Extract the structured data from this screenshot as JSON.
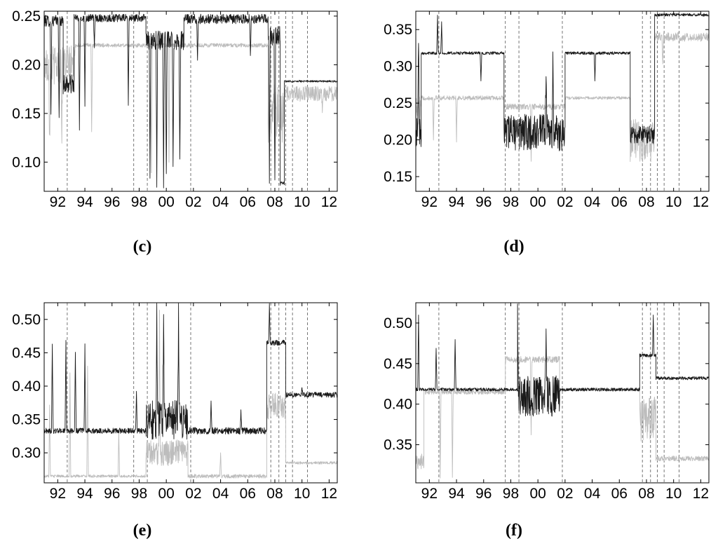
{
  "chart_data": [
    {
      "panel": "(c)",
      "type": "line",
      "x_ticks": [
        "92",
        "94",
        "96",
        "98",
        "00",
        "02",
        "04",
        "06",
        "08",
        "10",
        "12"
      ],
      "y_ticks": [
        "0.10",
        "0.15",
        "0.20",
        "0.25"
      ],
      "xlim": [
        1991.0,
        2012.6
      ],
      "ylim": [
        0.07,
        0.255
      ],
      "grid": false,
      "vlines": [
        1992.7,
        1997.6,
        1998.6,
        2001.8,
        2007.7,
        2008.3,
        2008.8,
        2009.3,
        2010.4
      ],
      "series": [
        {
          "color": "#1a1a1a",
          "segments": [
            {
              "from": 1991.0,
              "to": 1992.4,
              "base": 0.245,
              "noise": 0.006,
              "spikes": [
                {
                  "x": 1991.5,
                  "y": 0.15
                },
                {
                  "x": 1992.1,
                  "y": 0.14
                },
                {
                  "x": 1992.5,
                  "y": 0.13
                }
              ]
            },
            {
              "from": 1992.4,
              "to": 1993.2,
              "base": 0.18,
              "noise": 0.01,
              "spikes": []
            },
            {
              "from": 1993.2,
              "to": 1998.5,
              "base": 0.248,
              "noise": 0.004,
              "spikes": [
                {
                  "x": 1993.6,
                  "y": 0.13
                },
                {
                  "x": 1994.0,
                  "y": 0.16
                },
                {
                  "x": 1994.7,
                  "y": 0.22
                },
                {
                  "x": 1997.2,
                  "y": 0.16
                }
              ]
            },
            {
              "from": 1998.5,
              "to": 2001.3,
              "base": 0.225,
              "noise": 0.01,
              "spikes": [
                {
                  "x": 1998.8,
                  "y": 0.09
                },
                {
                  "x": 1999.3,
                  "y": 0.08
                },
                {
                  "x": 1999.8,
                  "y": 0.08
                },
                {
                  "x": 2000.0,
                  "y": 0.08
                },
                {
                  "x": 2000.5,
                  "y": 0.09
                },
                {
                  "x": 2001.0,
                  "y": 0.1
                }
              ]
            },
            {
              "from": 2001.3,
              "to": 2007.5,
              "base": 0.247,
              "noise": 0.005,
              "spikes": [
                {
                  "x": 2002.3,
                  "y": 0.2
                },
                {
                  "x": 2006.2,
                  "y": 0.21
                }
              ]
            },
            {
              "from": 2007.5,
              "to": 2008.4,
              "base": 0.23,
              "noise": 0.01,
              "spikes": [
                {
                  "x": 2007.6,
                  "y": 0.08
                },
                {
                  "x": 2008.0,
                  "y": 0.08
                }
              ]
            },
            {
              "from": 2008.4,
              "to": 2008.7,
              "base": 0.078,
              "noise": 0.002,
              "spikes": []
            },
            {
              "from": 2008.7,
              "to": 2012.6,
              "base": 0.183,
              "noise": 0.001,
              "spikes": []
            }
          ]
        },
        {
          "color": "#bdbdbd",
          "segments": [
            {
              "from": 1991.0,
              "to": 1993.3,
              "base": 0.2,
              "noise": 0.02,
              "spikes": [
                {
                  "x": 1991.4,
                  "y": 0.12
                },
                {
                  "x": 1992.3,
                  "y": 0.13
                }
              ]
            },
            {
              "from": 1993.3,
              "to": 2007.5,
              "base": 0.22,
              "noise": 0.002,
              "spikes": [
                {
                  "x": 1994.5,
                  "y": 0.13
                },
                {
                  "x": 1998.9,
                  "y": 0.09
                },
                {
                  "x": 2000.2,
                  "y": 0.1
                }
              ]
            },
            {
              "from": 2007.5,
              "to": 2008.7,
              "base": 0.15,
              "noise": 0.03,
              "spikes": []
            },
            {
              "from": 2008.7,
              "to": 2012.6,
              "base": 0.17,
              "noise": 0.008,
              "spikes": [
                {
                  "x": 2011.5,
                  "y": 0.15
                }
              ]
            }
          ]
        }
      ]
    },
    {
      "panel": "(d)",
      "type": "line",
      "x_ticks": [
        "92",
        "94",
        "96",
        "98",
        "00",
        "02",
        "04",
        "06",
        "08",
        "10",
        "12"
      ],
      "y_ticks": [
        "0.15",
        "0.20",
        "0.25",
        "0.30",
        "0.35"
      ],
      "xlim": [
        1991.0,
        2012.6
      ],
      "ylim": [
        0.13,
        0.375
      ],
      "grid": false,
      "vlines": [
        1992.7,
        1997.6,
        1998.6,
        2001.8,
        2007.7,
        2008.3,
        2008.8,
        2009.3,
        2010.4
      ],
      "series": [
        {
          "color": "#1a1a1a",
          "segments": [
            {
              "from": 1991.0,
              "to": 1991.4,
              "base": 0.21,
              "noise": 0.02,
              "spikes": [
                {
                  "x": 1991.2,
                  "y": 0.35
                }
              ]
            },
            {
              "from": 1991.4,
              "to": 1997.5,
              "base": 0.318,
              "noise": 0.002,
              "spikes": [
                {
                  "x": 1992.6,
                  "y": 0.37
                },
                {
                  "x": 1992.9,
                  "y": 0.36
                },
                {
                  "x": 1995.8,
                  "y": 0.28
                }
              ]
            },
            {
              "from": 1997.5,
              "to": 2002.0,
              "base": 0.21,
              "noise": 0.025,
              "spikes": [
                {
                  "x": 2000.6,
                  "y": 0.3
                },
                {
                  "x": 2001.1,
                  "y": 0.31
                }
              ]
            },
            {
              "from": 2002.0,
              "to": 2006.8,
              "base": 0.318,
              "noise": 0.002,
              "spikes": [
                {
                  "x": 2004.2,
                  "y": 0.28
                }
              ]
            },
            {
              "from": 2006.8,
              "to": 2008.6,
              "base": 0.207,
              "noise": 0.012,
              "spikes": []
            },
            {
              "from": 2008.6,
              "to": 2012.6,
              "base": 0.37,
              "noise": 0.002,
              "spikes": []
            }
          ]
        },
        {
          "color": "#bdbdbd",
          "segments": [
            {
              "from": 1991.0,
              "to": 1991.4,
              "base": 0.24,
              "noise": 0.02,
              "spikes": []
            },
            {
              "from": 1991.4,
              "to": 1997.5,
              "base": 0.257,
              "noise": 0.003,
              "spikes": [
                {
                  "x": 1992.3,
                  "y": 0.2
                },
                {
                  "x": 1994.0,
                  "y": 0.2
                }
              ]
            },
            {
              "from": 1997.5,
              "to": 2002.0,
              "base": 0.245,
              "noise": 0.004,
              "spikes": [
                {
                  "x": 1999.5,
                  "y": 0.17
                }
              ]
            },
            {
              "from": 2002.0,
              "to": 2006.8,
              "base": 0.257,
              "noise": 0.002,
              "spikes": []
            },
            {
              "from": 2006.8,
              "to": 2008.6,
              "base": 0.2,
              "noise": 0.03,
              "spikes": []
            },
            {
              "from": 2008.6,
              "to": 2012.6,
              "base": 0.34,
              "noise": 0.006,
              "spikes": [
                {
                  "x": 2009.2,
                  "y": 0.3
                }
              ]
            }
          ]
        }
      ]
    },
    {
      "panel": "(e)",
      "type": "line",
      "x_ticks": [
        "92",
        "94",
        "96",
        "98",
        "00",
        "02",
        "04",
        "06",
        "08",
        "10",
        "12"
      ],
      "y_ticks": [
        "0.30",
        "0.35",
        "0.40",
        "0.45",
        "0.50"
      ],
      "xlim": [
        1991.0,
        2012.6
      ],
      "ylim": [
        0.255,
        0.525
      ],
      "grid": false,
      "vlines": [
        1992.7,
        1997.6,
        1998.6,
        2001.8,
        2007.7,
        2008.3,
        2008.8,
        2009.3,
        2010.4
      ],
      "series": [
        {
          "color": "#1a1a1a",
          "segments": [
            {
              "from": 1991.0,
              "to": 1998.5,
              "base": 0.333,
              "noise": 0.004,
              "spikes": [
                {
                  "x": 1991.6,
                  "y": 0.46
                },
                {
                  "x": 1992.6,
                  "y": 0.47
                },
                {
                  "x": 1993.3,
                  "y": 0.45
                },
                {
                  "x": 1994.0,
                  "y": 0.46
                },
                {
                  "x": 1997.8,
                  "y": 0.39
                }
              ]
            },
            {
              "from": 1998.5,
              "to": 2001.6,
              "base": 0.35,
              "noise": 0.03,
              "spikes": [
                {
                  "x": 1999.3,
                  "y": 0.52
                },
                {
                  "x": 1999.8,
                  "y": 0.52
                },
                {
                  "x": 2000.9,
                  "y": 0.52
                }
              ]
            },
            {
              "from": 2001.6,
              "to": 2007.4,
              "base": 0.333,
              "noise": 0.005,
              "spikes": [
                {
                  "x": 2003.3,
                  "y": 0.38
                },
                {
                  "x": 2005.5,
                  "y": 0.36
                }
              ]
            },
            {
              "from": 2007.4,
              "to": 2008.8,
              "base": 0.465,
              "noise": 0.004,
              "spikes": [
                {
                  "x": 2007.6,
                  "y": 0.52
                }
              ]
            },
            {
              "from": 2008.8,
              "to": 2012.6,
              "base": 0.387,
              "noise": 0.004,
              "spikes": [
                {
                  "x": 2010.0,
                  "y": 0.4
                }
              ]
            }
          ]
        },
        {
          "color": "#bdbdbd",
          "segments": [
            {
              "from": 1991.0,
              "to": 1998.5,
              "base": 0.265,
              "noise": 0.002,
              "spikes": [
                {
                  "x": 1991.4,
                  "y": 0.37
                },
                {
                  "x": 1992.9,
                  "y": 0.42
                },
                {
                  "x": 1994.2,
                  "y": 0.43
                },
                {
                  "x": 1996.5,
                  "y": 0.33
                }
              ]
            },
            {
              "from": 1998.5,
              "to": 2001.6,
              "base": 0.3,
              "noise": 0.02,
              "spikes": [
                {
                  "x": 1999.5,
                  "y": 0.5
                }
              ]
            },
            {
              "from": 2001.6,
              "to": 2007.4,
              "base": 0.265,
              "noise": 0.003,
              "spikes": [
                {
                  "x": 2004.0,
                  "y": 0.3
                }
              ]
            },
            {
              "from": 2007.4,
              "to": 2008.8,
              "base": 0.37,
              "noise": 0.02,
              "spikes": []
            },
            {
              "from": 2008.8,
              "to": 2012.6,
              "base": 0.285,
              "noise": 0.002,
              "spikes": []
            }
          ]
        }
      ]
    },
    {
      "panel": "(f)",
      "type": "line",
      "x_ticks": [
        "92",
        "94",
        "96",
        "98",
        "00",
        "02",
        "04",
        "06",
        "08",
        "10",
        "12"
      ],
      "y_ticks": [
        "0.35",
        "0.40",
        "0.45",
        "0.50"
      ],
      "xlim": [
        1991.0,
        2012.6
      ],
      "ylim": [
        0.303,
        0.525
      ],
      "grid": false,
      "vlines": [
        1992.7,
        1997.6,
        1998.6,
        2001.8,
        2007.7,
        2008.3,
        2008.8,
        2009.3,
        2010.4
      ],
      "series": [
        {
          "color": "#1a1a1a",
          "segments": [
            {
              "from": 1991.0,
              "to": 1998.5,
              "base": 0.418,
              "noise": 0.002,
              "spikes": [
                {
                  "x": 1991.2,
                  "y": 0.51
                },
                {
                  "x": 1992.5,
                  "y": 0.47
                },
                {
                  "x": 1993.9,
                  "y": 0.48
                }
              ]
            },
            {
              "from": 1998.5,
              "to": 2001.6,
              "base": 0.41,
              "noise": 0.025,
              "spikes": [
                {
                  "x": 1998.5,
                  "y": 0.5
                },
                {
                  "x": 2000.6,
                  "y": 0.49
                }
              ]
            },
            {
              "from": 2001.6,
              "to": 2007.5,
              "base": 0.418,
              "noise": 0.002,
              "spikes": []
            },
            {
              "from": 2007.5,
              "to": 2008.7,
              "base": 0.46,
              "noise": 0.002,
              "spikes": [
                {
                  "x": 2008.5,
                  "y": 0.51
                }
              ]
            },
            {
              "from": 2008.7,
              "to": 2012.6,
              "base": 0.432,
              "noise": 0.002,
              "spikes": []
            }
          ]
        },
        {
          "color": "#bdbdbd",
          "segments": [
            {
              "from": 1991.0,
              "to": 1991.6,
              "base": 0.33,
              "noise": 0.01,
              "spikes": []
            },
            {
              "from": 1991.6,
              "to": 1997.6,
              "base": 0.415,
              "noise": 0.003,
              "spikes": [
                {
                  "x": 1992.8,
                  "y": 0.31
                },
                {
                  "x": 1993.7,
                  "y": 0.31
                }
              ]
            },
            {
              "from": 1997.6,
              "to": 2001.6,
              "base": 0.455,
              "noise": 0.004,
              "spikes": [
                {
                  "x": 1999.5,
                  "y": 0.36
                }
              ]
            },
            {
              "from": 2001.6,
              "to": 2007.5,
              "base": 0.418,
              "noise": 0.002,
              "spikes": []
            },
            {
              "from": 2007.5,
              "to": 2008.7,
              "base": 0.38,
              "noise": 0.03,
              "spikes": []
            },
            {
              "from": 2008.7,
              "to": 2012.6,
              "base": 0.333,
              "noise": 0.003,
              "spikes": []
            }
          ]
        }
      ]
    }
  ]
}
